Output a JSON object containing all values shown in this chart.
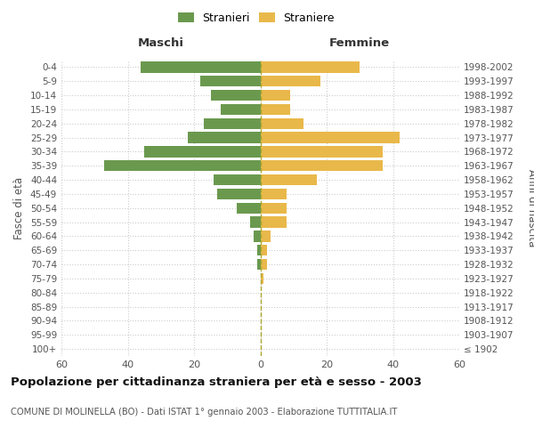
{
  "age_groups": [
    "100+",
    "95-99",
    "90-94",
    "85-89",
    "80-84",
    "75-79",
    "70-74",
    "65-69",
    "60-64",
    "55-59",
    "50-54",
    "45-49",
    "40-44",
    "35-39",
    "30-34",
    "25-29",
    "20-24",
    "15-19",
    "10-14",
    "5-9",
    "0-4"
  ],
  "birth_years": [
    "≤ 1902",
    "1903-1907",
    "1908-1912",
    "1913-1917",
    "1918-1922",
    "1923-1927",
    "1928-1932",
    "1933-1937",
    "1938-1942",
    "1943-1947",
    "1948-1952",
    "1953-1957",
    "1958-1962",
    "1963-1967",
    "1968-1972",
    "1973-1977",
    "1978-1982",
    "1983-1987",
    "1988-1992",
    "1993-1997",
    "1998-2002"
  ],
  "males": [
    0,
    0,
    0,
    0,
    0,
    0,
    1,
    1,
    2,
    3,
    7,
    13,
    14,
    47,
    35,
    22,
    17,
    12,
    15,
    18,
    36
  ],
  "females": [
    0,
    0,
    0,
    0,
    0,
    1,
    2,
    2,
    3,
    8,
    8,
    8,
    17,
    37,
    37,
    42,
    13,
    9,
    9,
    18,
    30
  ],
  "male_color": "#6a994e",
  "female_color": "#e9b84a",
  "title": "Popolazione per cittadinanza straniera per età e sesso - 2003",
  "subtitle": "COMUNE DI MOLINELLA (BO) - Dati ISTAT 1° gennaio 2003 - Elaborazione TUTTITALIA.IT",
  "ylabel_left": "Fasce di età",
  "ylabel_right": "Anni di nascita",
  "xlabel_maschi": "Maschi",
  "xlabel_femmine": "Femmine",
  "legend_stranieri": "Stranieri",
  "legend_straniere": "Straniere",
  "xlim": 60,
  "background_color": "#ffffff",
  "grid_color": "#cccccc",
  "vline_color": "#aaa830"
}
